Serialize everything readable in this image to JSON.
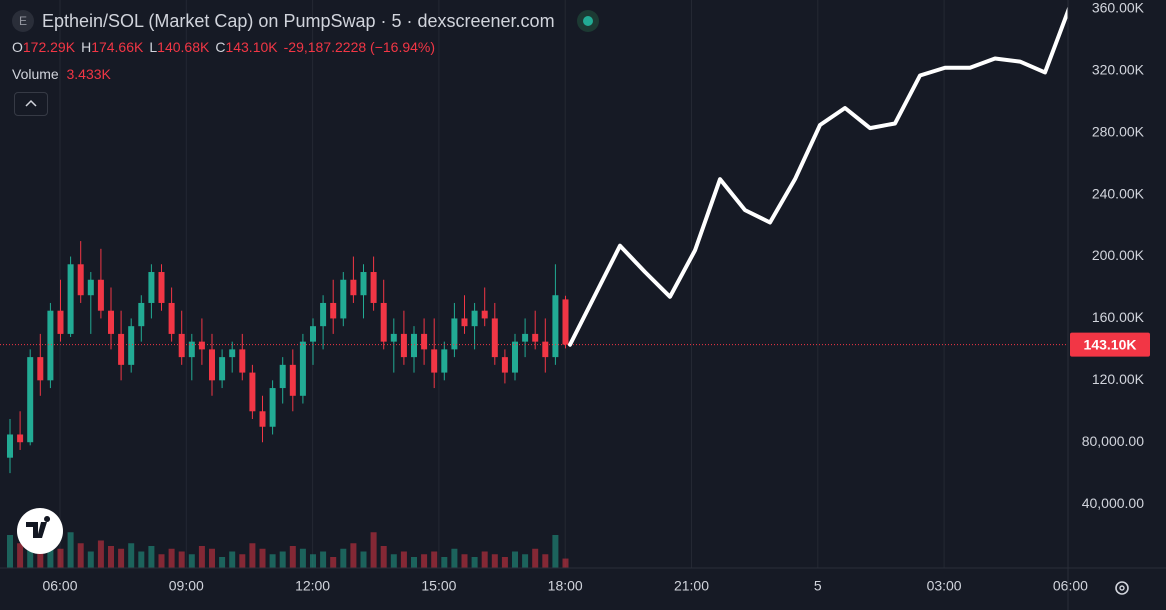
{
  "header": {
    "icon_letter": "E",
    "title": "Epthein/SOL (Market Cap) on PumpSwap · 5 · dexscreener.com",
    "ohlc": [
      {
        "key": "O",
        "value": "172.29K"
      },
      {
        "key": "H",
        "value": "174.66K"
      },
      {
        "key": "L",
        "value": "140.68K"
      },
      {
        "key": "C",
        "value": "143.10K"
      }
    ],
    "change": "-29,187.2228 (−16.94%)",
    "volume_label": "Volume",
    "volume_value": "3.433K"
  },
  "chart_data": {
    "type": "candlestick",
    "up_color": "#22ab94",
    "down_color": "#f23645",
    "candles": {
      "open": [
        70000,
        85000,
        80000,
        135000,
        120000,
        165000,
        150000,
        195000,
        175000,
        185000,
        165000,
        150000,
        130000,
        155000,
        170000,
        190000,
        170000,
        150000,
        135000,
        145000,
        140000,
        120000,
        135000,
        140000,
        125000,
        100000,
        90000,
        115000,
        130000,
        110000,
        145000,
        155000,
        170000,
        160000,
        185000,
        175000,
        190000,
        170000,
        145000,
        150000,
        135000,
        150000,
        140000,
        125000,
        140000,
        160000,
        155000,
        165000,
        160000,
        135000,
        125000,
        145000,
        150000,
        145000,
        135000,
        172290
      ],
      "high": [
        95000,
        100000,
        140000,
        150000,
        170000,
        185000,
        200000,
        210000,
        190000,
        205000,
        180000,
        165000,
        160000,
        175000,
        195000,
        195000,
        180000,
        165000,
        150000,
        160000,
        150000,
        140000,
        145000,
        150000,
        130000,
        110000,
        120000,
        135000,
        140000,
        150000,
        160000,
        175000,
        185000,
        190000,
        200000,
        195000,
        200000,
        185000,
        160000,
        165000,
        155000,
        160000,
        160000,
        145000,
        170000,
        175000,
        170000,
        180000,
        170000,
        140000,
        150000,
        160000,
        165000,
        160000,
        195000,
        174660
      ],
      "low": [
        60000,
        75000,
        78000,
        110000,
        115000,
        145000,
        148000,
        170000,
        150000,
        160000,
        140000,
        120000,
        125000,
        145000,
        160000,
        165000,
        145000,
        130000,
        120000,
        130000,
        110000,
        115000,
        125000,
        120000,
        95000,
        80000,
        85000,
        105000,
        100000,
        105000,
        130000,
        140000,
        150000,
        155000,
        170000,
        160000,
        165000,
        140000,
        125000,
        130000,
        125000,
        130000,
        115000,
        120000,
        135000,
        150000,
        140000,
        155000,
        130000,
        118000,
        120000,
        135000,
        140000,
        125000,
        130000,
        140680
      ],
      "close": [
        85000,
        80000,
        135000,
        120000,
        165000,
        150000,
        195000,
        175000,
        185000,
        165000,
        150000,
        130000,
        155000,
        170000,
        190000,
        170000,
        150000,
        135000,
        145000,
        140000,
        120000,
        135000,
        140000,
        125000,
        100000,
        90000,
        115000,
        130000,
        110000,
        145000,
        155000,
        170000,
        160000,
        185000,
        175000,
        190000,
        170000,
        145000,
        150000,
        135000,
        150000,
        140000,
        125000,
        140000,
        160000,
        155000,
        165000,
        160000,
        135000,
        125000,
        145000,
        150000,
        145000,
        135000,
        175000,
        143100
      ]
    },
    "volume": [
      12000,
      9000,
      14000,
      8000,
      11000,
      7000,
      13000,
      9000,
      6000,
      10000,
      8000,
      7000,
      9000,
      6000,
      8000,
      5000,
      7000,
      6000,
      5000,
      8000,
      7000,
      4000,
      6000,
      5000,
      9000,
      7000,
      5000,
      6000,
      8000,
      7000,
      5000,
      6000,
      4000,
      7000,
      9000,
      6000,
      13000,
      8000,
      5000,
      6000,
      4000,
      5000,
      6000,
      4000,
      7000,
      5000,
      4000,
      6000,
      5000,
      4000,
      6000,
      5000,
      7000,
      5000,
      12000,
      3433
    ],
    "ylim": [
      0,
      365800
    ],
    "yticks": [
      {
        "value": 40000,
        "label": "40,000.00"
      },
      {
        "value": 80000,
        "label": "80,000.00"
      },
      {
        "value": 120000,
        "label": "120.00K"
      },
      {
        "value": 160000,
        "label": "160.00K"
      },
      {
        "value": 200000,
        "label": "200.00K"
      },
      {
        "value": 240000,
        "label": "240.00K"
      },
      {
        "value": 280000,
        "label": "280.00K"
      },
      {
        "value": 320000,
        "label": "320.00K"
      },
      {
        "value": 360000,
        "label": "360.00K"
      }
    ],
    "xtick_labels": [
      "06:00",
      "09:00",
      "12:00",
      "15:00",
      "18:00",
      "21:00",
      "5",
      "03:00",
      "06:00"
    ],
    "last_price_label": "143.10K",
    "grid": true,
    "drawn_line": {
      "color": "#ffffff",
      "values": [
        143000,
        175000,
        207000,
        190000,
        174000,
        204000,
        250000,
        230000,
        222000,
        250000,
        285000,
        296000,
        283000,
        286000,
        317000,
        322000,
        322000,
        328000,
        326000,
        319000,
        362000
      ]
    }
  }
}
